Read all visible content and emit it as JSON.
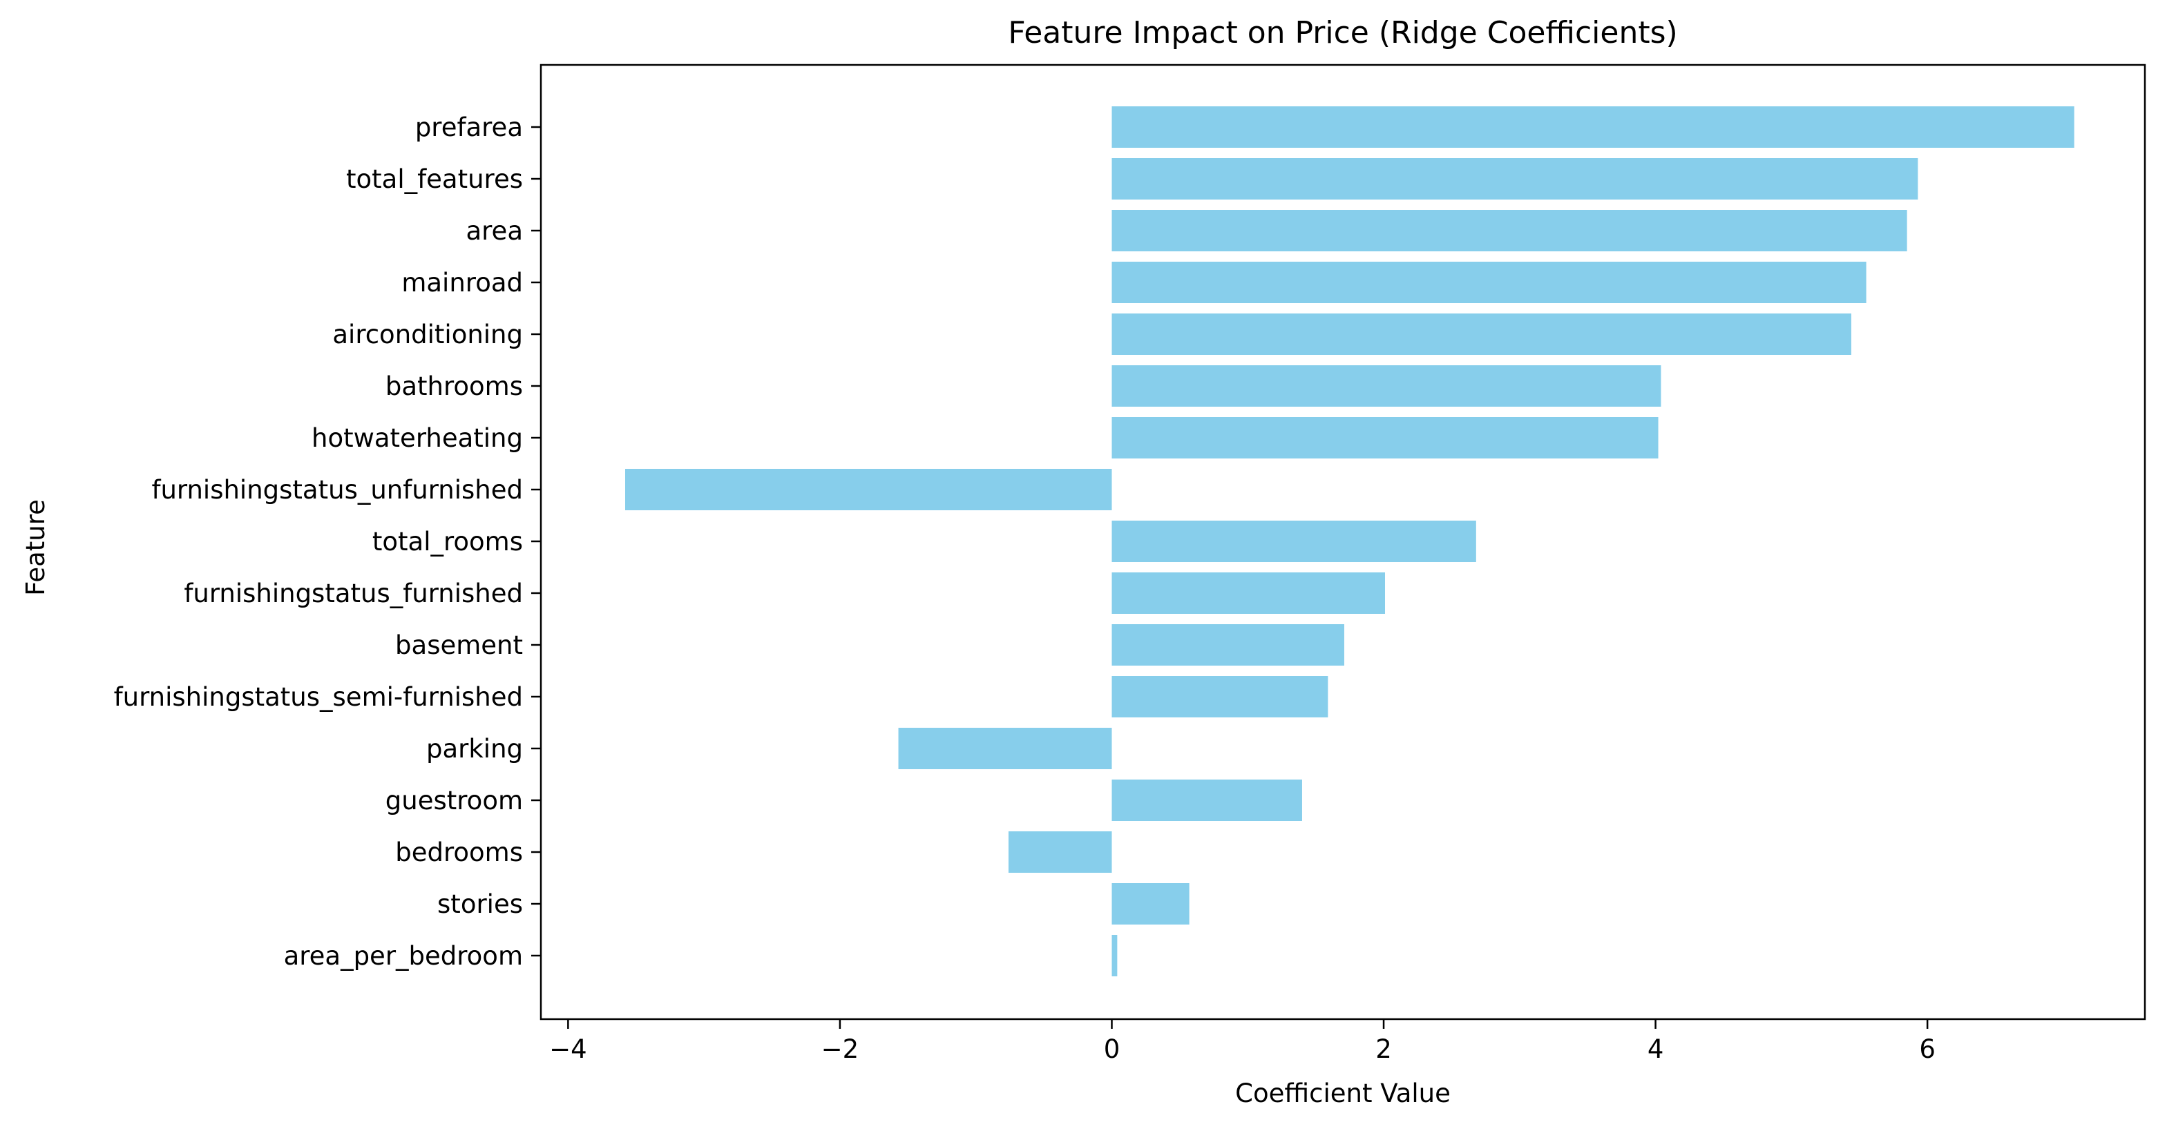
{
  "chart_data": {
    "type": "bar",
    "orientation": "horizontal",
    "title": "Feature Impact on Price (Ridge Coefficients)",
    "xlabel": "Coefficient Value",
    "ylabel": "Feature",
    "xlim": [
      -4.2,
      7.6
    ],
    "xticks": [
      -4,
      -2,
      0,
      2,
      4,
      6
    ],
    "xtick_labels": [
      "−4",
      "−2",
      "0",
      "2",
      "4",
      "6"
    ],
    "grid": false,
    "bar_color": "#87ceeb",
    "categories": [
      "prefarea",
      "total_features",
      "area",
      "mainroad",
      "airconditioning",
      "bathrooms",
      "hotwaterheating",
      "furnishingstatus_unfurnished",
      "total_rooms",
      "furnishingstatus_furnished",
      "basement",
      "furnishingstatus_semi-furnished",
      "parking",
      "guestroom",
      "bedrooms",
      "stories",
      "area_per_bedroom"
    ],
    "values": [
      7.08,
      5.93,
      5.85,
      5.55,
      5.44,
      4.04,
      4.02,
      -3.58,
      2.68,
      2.01,
      1.71,
      1.59,
      -1.57,
      1.4,
      -0.76,
      0.57,
      0.04
    ]
  }
}
